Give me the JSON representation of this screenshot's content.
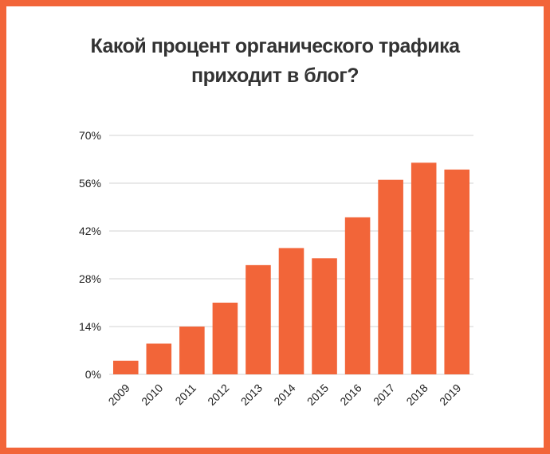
{
  "chart_data": {
    "type": "bar",
    "title_lines": [
      "Какой процент органического трафика",
      "приходит в блог?"
    ],
    "categories": [
      "2009",
      "2010",
      "2011",
      "2012",
      "2013",
      "2014",
      "2015",
      "2016",
      "2017",
      "2018",
      "2019"
    ],
    "values": [
      4,
      9,
      14,
      21,
      32,
      37,
      34,
      46,
      57,
      62,
      60
    ],
    "ylim": [
      0,
      70
    ],
    "yticks": [
      {
        "value": 0,
        "label": "0%"
      },
      {
        "value": 14,
        "label": "14%"
      },
      {
        "value": 28,
        "label": "28%"
      },
      {
        "value": 42,
        "label": "42%"
      },
      {
        "value": 56,
        "label": "56%"
      },
      {
        "value": 70,
        "label": "70%"
      }
    ],
    "grid": true,
    "bar_color": "#f26539",
    "frame_color": "#f26539"
  }
}
